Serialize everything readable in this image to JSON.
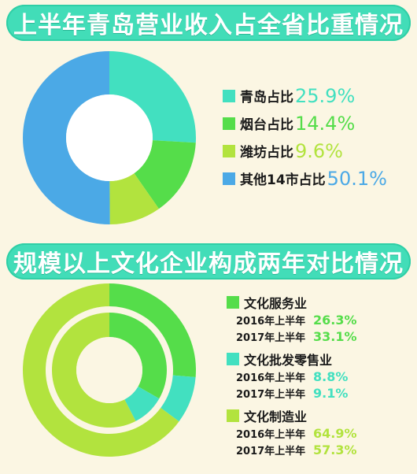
{
  "chart_data": [
    {
      "type": "pie",
      "title": "上半年青岛营业收入占全省比重情况",
      "categories": [
        "青岛占比",
        "烟台占比",
        "潍坊占比",
        "其他14市占比"
      ],
      "values": [
        25.9,
        14.4,
        9.6,
        50.1
      ],
      "value_labels": [
        "25.9%",
        "14.4%",
        "9.6%",
        "50.1%"
      ],
      "colors": [
        "#42e0c0",
        "#55dd4a",
        "#b2e33e",
        "#4ba9e6"
      ],
      "legend": "right"
    },
    {
      "type": "pie",
      "title": "规模以上文化企业构成两年对比情况",
      "categories": [
        "文化服务业",
        "文化批发零售业",
        "文化制造业"
      ],
      "series": [
        {
          "name": "2016年上半年",
          "values": [
            26.3,
            8.8,
            64.9
          ],
          "value_labels": [
            "26.3%",
            "8.8%",
            "64.9%"
          ]
        },
        {
          "name": "2017年上半年",
          "values": [
            33.1,
            9.1,
            57.3
          ],
          "value_labels": [
            "33.1%",
            "9.1%",
            "57.3%"
          ]
        }
      ],
      "colors": [
        "#55dd4a",
        "#42e0c0",
        "#b2e33e"
      ],
      "legend": "right"
    }
  ]
}
